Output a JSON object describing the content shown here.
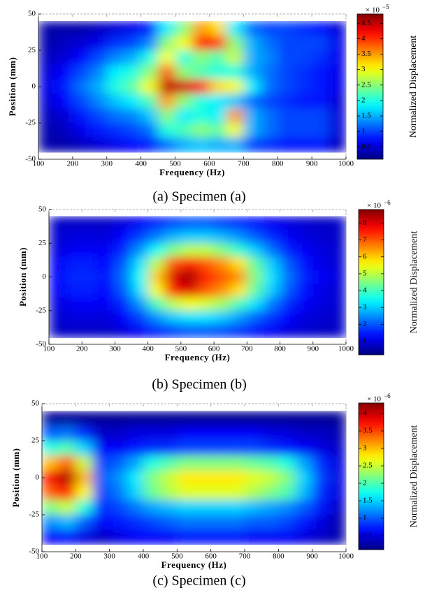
{
  "chart_data": [
    {
      "type": "heatmap",
      "caption": "(a) Specimen (a)",
      "xlabel": "Frequency (Hz)",
      "ylabel": "Position (mm)",
      "colorbar_label": "Normalized Displacement",
      "colorbar_multiplier": "× 10",
      "colorbar_exponent": "−5",
      "xlim": [
        100,
        1000
      ],
      "ylim": [
        -50,
        50
      ],
      "xticks": [
        100,
        200,
        300,
        400,
        500,
        600,
        700,
        800,
        900,
        1000
      ],
      "yticks": [
        -50,
        -25,
        0,
        25,
        50
      ],
      "clim": [
        0.1,
        4.8
      ],
      "cticks": [
        0.5,
        1,
        1.5,
        2,
        2.5,
        3,
        3.5,
        4,
        4.5
      ],
      "x": [
        125,
        175,
        225,
        275,
        325,
        375,
        425,
        475,
        525,
        575,
        625,
        675,
        725,
        775,
        825,
        875,
        925,
        975
      ],
      "y": [
        40,
        30,
        20,
        10,
        0,
        -10,
        -20,
        -30,
        -40
      ],
      "z": [
        [
          0.3,
          0.3,
          0.3,
          0.4,
          0.5,
          0.6,
          0.8,
          1.8,
          2.5,
          3.5,
          3.2,
          1.8,
          1.2,
          1.0,
          1.0,
          0.9,
          0.8,
          0.5
        ],
        [
          0.3,
          0.4,
          0.5,
          0.6,
          0.9,
          1.0,
          1.3,
          2.5,
          3.0,
          4.2,
          4.0,
          2.5,
          1.5,
          1.2,
          1.0,
          1.0,
          1.0,
          0.6
        ],
        [
          0.4,
          0.5,
          0.7,
          1.0,
          1.3,
          1.5,
          2.0,
          3.0,
          2.0,
          2.5,
          2.2,
          2.8,
          1.5,
          1.3,
          1.0,
          1.0,
          0.9,
          0.6
        ],
        [
          0.5,
          0.7,
          1.0,
          1.3,
          1.8,
          2.0,
          2.5,
          3.8,
          2.5,
          2.2,
          2.0,
          2.0,
          1.5,
          1.2,
          1.0,
          0.9,
          0.8,
          0.6
        ],
        [
          0.6,
          0.8,
          1.2,
          1.5,
          2.0,
          2.3,
          3.0,
          4.5,
          4.4,
          4.2,
          3.2,
          3.0,
          1.8,
          1.2,
          1.0,
          0.9,
          0.8,
          0.6
        ],
        [
          0.5,
          0.7,
          1.0,
          1.3,
          1.6,
          1.8,
          2.2,
          3.5,
          2.5,
          2.0,
          1.8,
          1.6,
          1.2,
          1.0,
          0.9,
          0.8,
          0.8,
          0.5
        ],
        [
          0.4,
          0.5,
          0.8,
          1.0,
          1.2,
          1.3,
          1.6,
          2.5,
          1.8,
          2.0,
          1.8,
          3.5,
          1.5,
          1.2,
          1.0,
          1.0,
          1.0,
          0.5
        ],
        [
          0.3,
          0.4,
          0.6,
          0.8,
          0.9,
          1.0,
          1.2,
          2.0,
          2.2,
          2.5,
          2.3,
          3.0,
          1.5,
          1.2,
          1.0,
          1.0,
          1.0,
          0.5
        ],
        [
          0.3,
          0.3,
          0.4,
          0.5,
          0.6,
          0.7,
          0.8,
          1.2,
          1.5,
          1.6,
          1.5,
          1.5,
          1.0,
          0.9,
          0.8,
          0.8,
          0.8,
          0.4
        ]
      ]
    },
    {
      "type": "heatmap",
      "caption": "(b) Specimen (b)",
      "xlabel": "Frequency (Hz)",
      "ylabel": "Position (mm)",
      "colorbar_label": "Normalized Displacement",
      "colorbar_multiplier": "× 10",
      "colorbar_exponent": "−6",
      "xlim": [
        100,
        1000
      ],
      "ylim": [
        -50,
        50
      ],
      "xticks": [
        100,
        200,
        300,
        400,
        500,
        600,
        700,
        800,
        900,
        1000
      ],
      "yticks": [
        -50,
        -25,
        0,
        25,
        50
      ],
      "clim": [
        0.2,
        8.8
      ],
      "cticks": [
        1,
        2,
        3,
        4,
        5,
        6,
        7,
        8
      ],
      "x": [
        125,
        175,
        225,
        275,
        325,
        375,
        425,
        475,
        525,
        575,
        625,
        675,
        725,
        775,
        825,
        875,
        925,
        975
      ],
      "y": [
        40,
        30,
        20,
        10,
        0,
        -10,
        -20,
        -30,
        -40
      ],
      "z": [
        [
          0.8,
          0.8,
          0.8,
          0.8,
          1.0,
          1.2,
          1.5,
          1.8,
          2.0,
          2.0,
          1.8,
          1.6,
          1.4,
          1.2,
          1.0,
          0.9,
          0.8,
          0.8
        ],
        [
          0.9,
          1.0,
          1.0,
          1.0,
          1.3,
          1.8,
          2.3,
          2.8,
          3.0,
          3.0,
          2.8,
          2.5,
          2.0,
          1.6,
          1.2,
          1.0,
          0.9,
          0.8
        ],
        [
          1.0,
          1.2,
          1.2,
          1.2,
          1.6,
          2.5,
          3.5,
          4.5,
          5.0,
          5.0,
          4.5,
          3.8,
          3.0,
          2.2,
          1.5,
          1.2,
          1.0,
          0.9
        ],
        [
          1.2,
          1.5,
          1.5,
          1.3,
          2.0,
          3.2,
          5.0,
          7.0,
          7.5,
          7.0,
          6.5,
          5.8,
          4.2,
          3.0,
          2.0,
          1.4,
          1.1,
          0.9
        ],
        [
          1.3,
          1.6,
          1.6,
          1.4,
          2.2,
          3.5,
          6.0,
          8.0,
          8.5,
          7.5,
          7.0,
          6.5,
          4.5,
          3.2,
          2.2,
          1.5,
          1.2,
          1.0
        ],
        [
          1.2,
          1.5,
          1.5,
          1.3,
          2.0,
          3.2,
          5.5,
          7.5,
          8.0,
          7.0,
          6.5,
          5.8,
          4.2,
          3.0,
          2.0,
          1.4,
          1.1,
          0.9
        ],
        [
          1.0,
          1.2,
          1.2,
          1.2,
          1.6,
          2.5,
          4.0,
          5.0,
          5.5,
          5.2,
          4.8,
          4.0,
          3.2,
          2.3,
          1.6,
          1.2,
          1.0,
          0.9
        ],
        [
          0.9,
          1.0,
          1.0,
          1.0,
          1.3,
          1.8,
          2.5,
          3.0,
          3.2,
          3.2,
          3.0,
          2.6,
          2.1,
          1.7,
          1.3,
          1.0,
          0.9,
          0.8
        ],
        [
          0.8,
          0.8,
          0.8,
          0.8,
          1.0,
          1.2,
          1.5,
          1.8,
          2.0,
          2.0,
          1.9,
          1.7,
          1.4,
          1.2,
          1.0,
          0.9,
          0.8,
          0.8
        ]
      ]
    },
    {
      "type": "heatmap",
      "caption": "(c) Specimen (c)",
      "xlabel": "Frequency (Hz)",
      "ylabel": "Position (mm)",
      "colorbar_label": "Normalized Displacement",
      "colorbar_multiplier": "× 10",
      "colorbar_exponent": "−6",
      "xlim": [
        100,
        1000
      ],
      "ylim": [
        -50,
        50
      ],
      "xticks": [
        100,
        200,
        300,
        400,
        500,
        600,
        700,
        800,
        900,
        1000
      ],
      "yticks": [
        -50,
        -25,
        0,
        25,
        50
      ],
      "clim": [
        0.1,
        4.3
      ],
      "cticks": [
        0.5,
        1,
        1.5,
        2,
        2.5,
        3,
        3.5,
        4
      ],
      "x": [
        125,
        175,
        225,
        275,
        325,
        375,
        425,
        475,
        525,
        575,
        625,
        675,
        725,
        775,
        825,
        875,
        925,
        975
      ],
      "y": [
        40,
        30,
        20,
        10,
        0,
        -10,
        -20,
        -30,
        -40
      ],
      "z": [
        [
          0.2,
          0.2,
          0.2,
          0.2,
          0.2,
          0.2,
          0.2,
          0.2,
          0.2,
          0.2,
          0.2,
          0.2,
          0.2,
          0.2,
          0.2,
          0.2,
          0.2,
          0.2
        ],
        [
          1.0,
          1.1,
          0.8,
          0.4,
          0.4,
          0.5,
          0.5,
          0.5,
          0.6,
          0.6,
          0.6,
          0.6,
          0.6,
          0.5,
          0.5,
          0.4,
          0.4,
          0.3
        ],
        [
          1.8,
          2.0,
          1.5,
          0.6,
          0.6,
          0.7,
          0.8,
          0.8,
          0.9,
          0.9,
          0.9,
          0.9,
          0.9,
          0.8,
          0.7,
          0.6,
          0.5,
          0.4
        ],
        [
          3.0,
          3.4,
          2.5,
          0.9,
          1.0,
          1.3,
          1.8,
          2.0,
          2.2,
          2.2,
          2.2,
          2.2,
          2.1,
          2.0,
          1.8,
          1.3,
          0.8,
          0.5
        ],
        [
          3.8,
          4.1,
          3.0,
          1.0,
          1.2,
          1.6,
          2.2,
          2.5,
          2.8,
          2.8,
          2.8,
          2.8,
          2.6,
          2.5,
          2.2,
          1.5,
          0.9,
          0.5
        ],
        [
          3.4,
          3.7,
          2.7,
          0.9,
          1.1,
          1.5,
          2.1,
          2.4,
          2.6,
          2.6,
          2.6,
          2.6,
          2.4,
          2.2,
          2.0,
          1.4,
          0.8,
          0.5
        ],
        [
          2.2,
          2.5,
          1.8,
          0.8,
          0.9,
          1.1,
          1.3,
          1.4,
          1.5,
          1.5,
          1.5,
          1.5,
          1.4,
          1.3,
          1.2,
          1.0,
          0.7,
          0.4
        ],
        [
          1.2,
          1.4,
          1.0,
          0.6,
          0.7,
          0.8,
          0.9,
          1.0,
          1.1,
          1.1,
          1.1,
          1.1,
          1.0,
          1.0,
          0.9,
          0.7,
          0.5,
          0.3
        ],
        [
          0.6,
          0.7,
          0.5,
          0.4,
          0.5,
          0.6,
          0.6,
          0.6,
          0.7,
          0.7,
          0.7,
          0.7,
          0.6,
          0.6,
          0.6,
          0.5,
          0.4,
          0.3
        ]
      ]
    }
  ]
}
